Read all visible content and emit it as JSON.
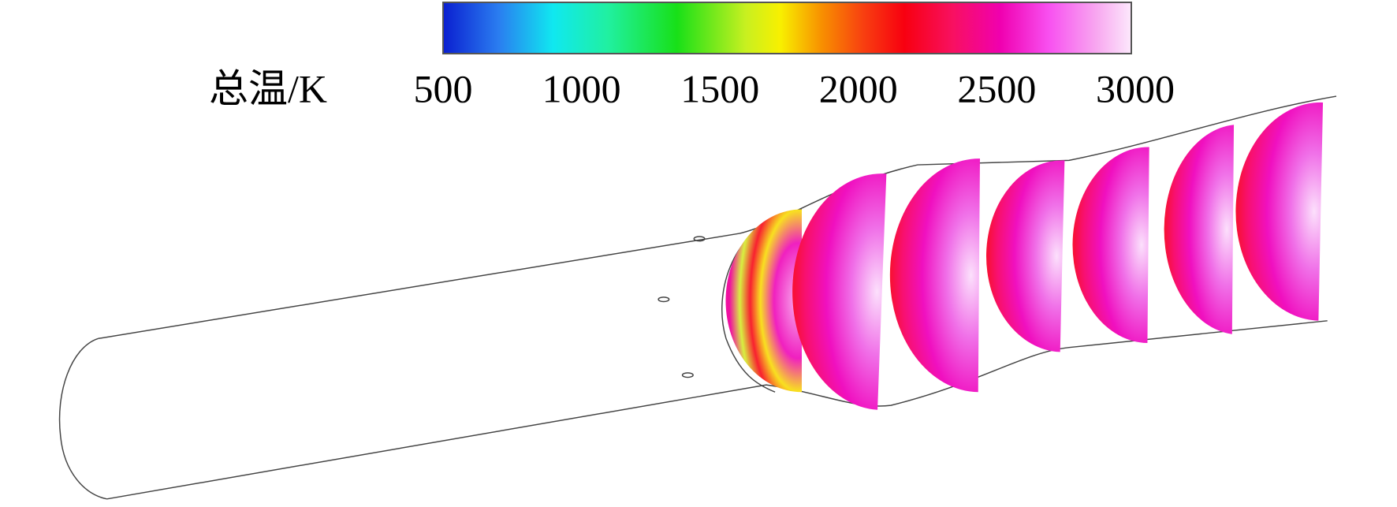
{
  "legend": {
    "title": "总温/K",
    "ticks": [
      500,
      1000,
      1500,
      2000,
      2500,
      3000
    ]
  }
}
